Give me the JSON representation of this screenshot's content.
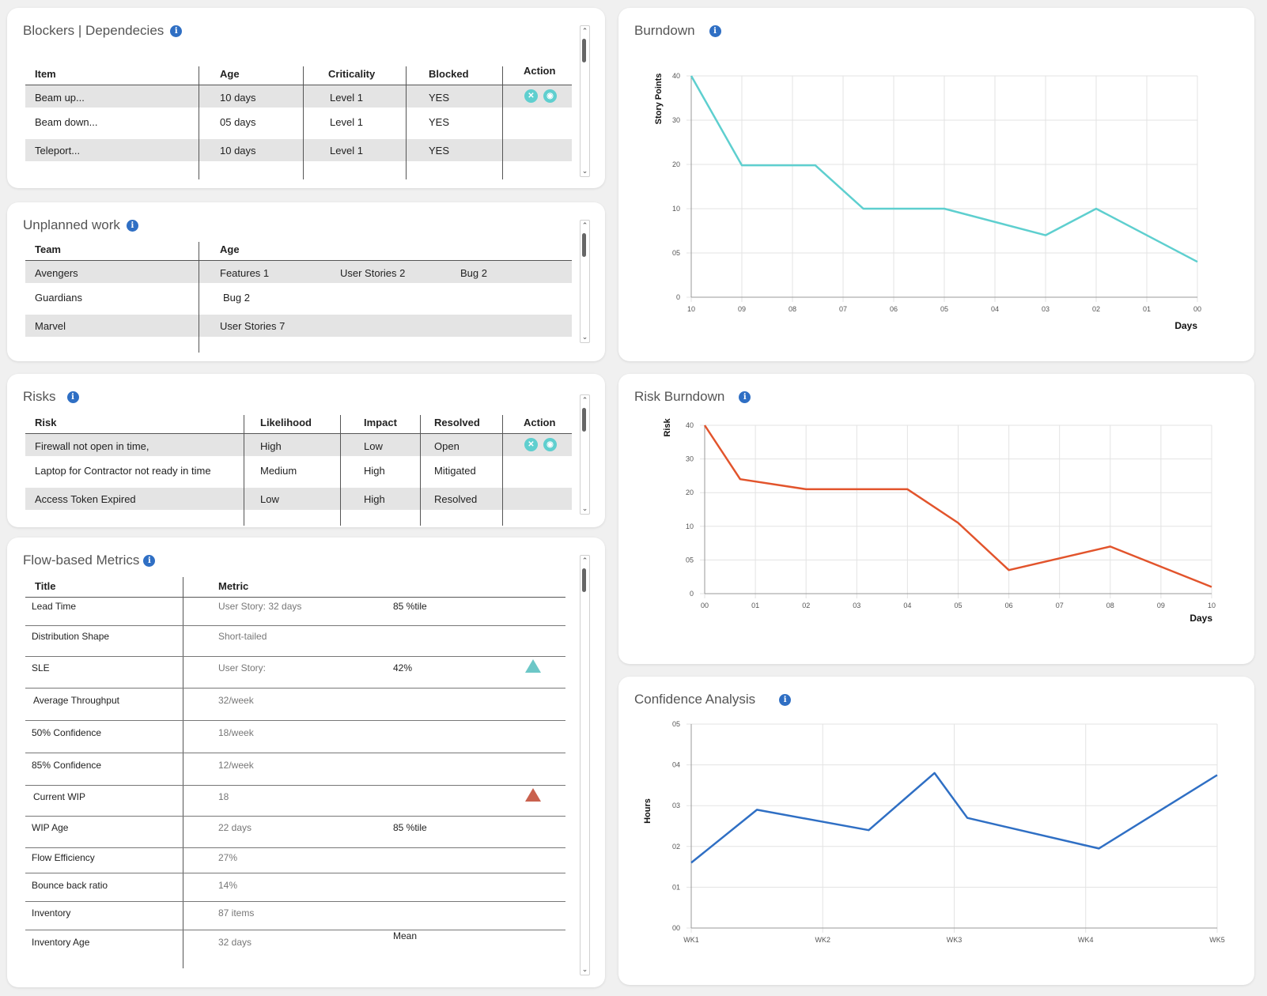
{
  "blockers": {
    "title": "Blockers | Dependecies",
    "headers": [
      "Item",
      "Age",
      "Criticality",
      "Blocked",
      "Action"
    ],
    "rows": [
      {
        "item": "Beam up...",
        "age": "10 days",
        "criticality": "Level 1",
        "blocked": "YES"
      },
      {
        "item": "Beam down...",
        "age": "05 days",
        "criticality": "Level 1",
        "blocked": "YES"
      },
      {
        "item": "Teleport...",
        "age": "10 days",
        "criticality": "Level 1",
        "blocked": "YES"
      }
    ]
  },
  "unplanned": {
    "title": "Unplanned work",
    "headers": [
      "Team",
      "Age"
    ],
    "rows": [
      {
        "team": "Avengers",
        "a": "Features 1",
        "b": "User Stories 2",
        "c": "Bug 2"
      },
      {
        "team": "Guardians",
        "a": "Bug 2",
        "b": "",
        "c": ""
      },
      {
        "team": "Marvel",
        "a": "User Stories 7",
        "b": "",
        "c": ""
      }
    ]
  },
  "risks": {
    "title": "Risks",
    "headers": [
      "Risk",
      "Likelihood",
      "Impact",
      "Resolved",
      "Action"
    ],
    "rows": [
      {
        "risk": "Firewall not open in time,",
        "likelihood": "High",
        "impact": "Low",
        "resolved": "Open"
      },
      {
        "risk": "Laptop for Contractor not ready in time",
        "likelihood": "Medium",
        "impact": "High",
        "resolved": "Mitigated"
      },
      {
        "risk": "Access Token Expired",
        "likelihood": "Low",
        "impact": "High",
        "resolved": "Resolved"
      }
    ]
  },
  "flow": {
    "title": "Flow-based Metrics",
    "headers": [
      "Title",
      "Metric"
    ],
    "rows": [
      {
        "title": "Lead Time",
        "value": "User Story:  32 days",
        "extra": "85 %tile",
        "marker": ""
      },
      {
        "title": "Distribution Shape",
        "value": "Short-tailed",
        "extra": "",
        "marker": ""
      },
      {
        "title": "SLE",
        "value": "User Story:",
        "extra": "42%",
        "marker": "up-teal"
      },
      {
        "title": "Average Throughput",
        "value": "32/week",
        "extra": "",
        "marker": ""
      },
      {
        "title": "50% Confidence",
        "value": "18/week",
        "extra": "",
        "marker": ""
      },
      {
        "title": "85% Confidence",
        "value": "12/week",
        "extra": "",
        "marker": ""
      },
      {
        "title": "Current WIP",
        "value": "18",
        "extra": "",
        "marker": "up-red"
      },
      {
        "title": "WIP Age",
        "value": "22 days",
        "extra": "85 %tile",
        "marker": ""
      },
      {
        "title": "Flow Efficiency",
        "value": "27%",
        "extra": "",
        "marker": ""
      },
      {
        "title": "Bounce back ratio",
        "value": "14%",
        "extra": "",
        "marker": ""
      },
      {
        "title": "Inventory",
        "value": "87 items",
        "extra": "",
        "marker": ""
      },
      {
        "title": "Inventory Age",
        "value": "32 days",
        "extra": "Mean",
        "marker": ""
      }
    ],
    "marker_colors": {
      "up-teal": "#6cc7c7",
      "up-red": "#c9614e"
    }
  },
  "burndown": {
    "title": "Burndown",
    "chart_data": {
      "type": "line",
      "ylabel": "Story Points",
      "xlabel": "Days",
      "ytick_labels": [
        "0",
        "05",
        "10",
        "20",
        "30",
        "40"
      ],
      "ytick_values": [
        0,
        5,
        10,
        20,
        30,
        40
      ],
      "x": [
        "10",
        "09",
        "08",
        "07",
        "06",
        "05",
        "04",
        "03",
        "02",
        "01",
        "00"
      ],
      "series": [
        {
          "values": [
            40,
            20,
            20,
            10,
            10,
            10,
            null,
            7,
            10,
            null,
            4
          ]
        }
      ],
      "line_points": [
        [
          0,
          40
        ],
        [
          1,
          19.8
        ],
        [
          2.45,
          19.8
        ],
        [
          3.4,
          10
        ],
        [
          5,
          10
        ],
        [
          7,
          7
        ],
        [
          8,
          10
        ],
        [
          10,
          4
        ]
      ],
      "color": "#5ecfcf",
      "grid": true
    }
  },
  "riskburn": {
    "title": "Risk Burndown",
    "chart_data": {
      "type": "line",
      "ylabel": "Risk",
      "xlabel": "Days",
      "ytick_labels": [
        "0",
        "05",
        "10",
        "20",
        "30",
        "40"
      ],
      "ytick_values": [
        0,
        5,
        10,
        20,
        30,
        40
      ],
      "x": [
        "00",
        "01",
        "02",
        "03",
        "04",
        "05",
        "06",
        "07",
        "08",
        "09",
        "10"
      ],
      "line_points": [
        [
          0,
          40
        ],
        [
          0.7,
          24
        ],
        [
          2,
          21
        ],
        [
          4,
          21
        ],
        [
          5,
          11
        ],
        [
          6,
          3.5
        ],
        [
          8,
          7
        ],
        [
          10,
          1
        ]
      ],
      "color": "#e2542c",
      "grid": true
    }
  },
  "confidence": {
    "title": "Confidence Analysis",
    "chart_data": {
      "type": "line",
      "ylabel": "Hours",
      "ytick_labels": [
        "00",
        "01",
        "02",
        "03",
        "04",
        "05"
      ],
      "ytick_values": [
        0,
        1,
        2,
        3,
        4,
        5
      ],
      "x": [
        "WK1",
        "WK2",
        "WK3",
        "WK4",
        "WK5"
      ],
      "line_points": [
        [
          0,
          1.6
        ],
        [
          0.5,
          2.9
        ],
        [
          1.35,
          2.4
        ],
        [
          1.85,
          3.8
        ],
        [
          2.1,
          2.7
        ],
        [
          3.1,
          1.95
        ],
        [
          4,
          3.75
        ]
      ],
      "color": "#2f6fc4",
      "grid": true
    }
  }
}
